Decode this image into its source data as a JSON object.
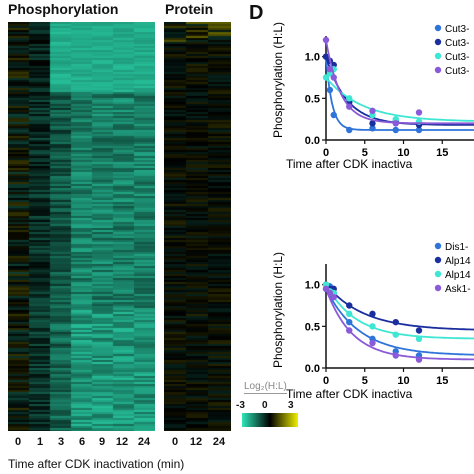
{
  "heatmap": {
    "phospho_title": "Phosphorylation",
    "protein_title": "Protein",
    "phospho_ticks": [
      "0",
      "1",
      "3",
      "6",
      "9",
      "12",
      "24"
    ],
    "protein_ticks": [
      "0",
      "12",
      "24"
    ],
    "xlabel": "Time after CDK inactivation (min)",
    "colorbar_title": "Log₂(H:L)",
    "colorbar_ticks": [
      "-3",
      "0",
      "3"
    ],
    "colors": {
      "low": "#2ee6b8",
      "mid": "#000000",
      "high": "#f0f000"
    }
  },
  "panel_label": "D",
  "chart_data": [
    {
      "type": "scatter",
      "title": "",
      "ylabel": "Phosphorylation (H:L)",
      "xlabel": "Time after CDK inactiva",
      "ylim": [
        0,
        1.2
      ],
      "xlim": [
        0,
        20
      ],
      "yticks": [
        "0.0",
        "0.5",
        "1.0"
      ],
      "xticks": [
        "0",
        "5",
        "10",
        "15"
      ],
      "series": [
        {
          "name": "Cut3-",
          "color": "#2f74d9",
          "x": [
            0,
            0.5,
            1,
            3,
            6,
            9,
            12
          ],
          "y": [
            1.0,
            0.6,
            0.3,
            0.12,
            0.14,
            0.12,
            0.12
          ]
        },
        {
          "name": "Cut3-",
          "color": "#1a2e9e",
          "x": [
            0,
            0.5,
            1,
            3,
            6,
            9,
            12
          ],
          "y": [
            1.0,
            0.95,
            0.9,
            0.45,
            0.2,
            0.22,
            0.18
          ]
        },
        {
          "name": "Cut3-",
          "color": "#3ee6d3",
          "x": [
            0,
            0.5,
            1,
            3,
            6,
            9,
            12
          ],
          "y": [
            0.75,
            0.8,
            0.85,
            0.5,
            0.3,
            0.25,
            0.22
          ]
        },
        {
          "name": "Cut3-",
          "color": "#8a5ad8",
          "x": [
            0,
            0.5,
            1,
            3,
            6,
            9,
            12
          ],
          "y": [
            1.2,
            0.85,
            0.75,
            0.4,
            0.35,
            0.2,
            0.33
          ]
        }
      ]
    },
    {
      "type": "scatter",
      "title": "",
      "ylabel": "Phosphorylation (H:L)",
      "xlabel": "Time after CDK inactiva",
      "ylim": [
        0,
        1.2
      ],
      "xlim": [
        0,
        20
      ],
      "yticks": [
        "0.0",
        "0.5",
        "1.0"
      ],
      "xticks": [
        "0",
        "5",
        "10",
        "15"
      ],
      "series": [
        {
          "name": "Dis1-",
          "color": "#2f74d9",
          "x": [
            0,
            0.5,
            1,
            3,
            6,
            9,
            12
          ],
          "y": [
            0.95,
            0.98,
            0.9,
            0.55,
            0.35,
            0.2,
            0.15
          ]
        },
        {
          "name": "Alp14",
          "color": "#1a2e9e",
          "x": [
            0,
            0.5,
            1,
            3,
            6,
            9,
            12
          ],
          "y": [
            1.0,
            0.95,
            0.95,
            0.75,
            0.65,
            0.55,
            0.45
          ]
        },
        {
          "name": "Alp14",
          "color": "#3ee6d3",
          "x": [
            0,
            0.5,
            1,
            3,
            6,
            9,
            12
          ],
          "y": [
            1.0,
            0.92,
            0.9,
            0.65,
            0.5,
            0.4,
            0.35
          ]
        },
        {
          "name": "Ask1-",
          "color": "#8a5ad8",
          "x": [
            0,
            0.5,
            1,
            3,
            6,
            9,
            12
          ],
          "y": [
            0.95,
            0.9,
            0.85,
            0.45,
            0.3,
            0.15,
            0.1
          ]
        }
      ]
    }
  ]
}
